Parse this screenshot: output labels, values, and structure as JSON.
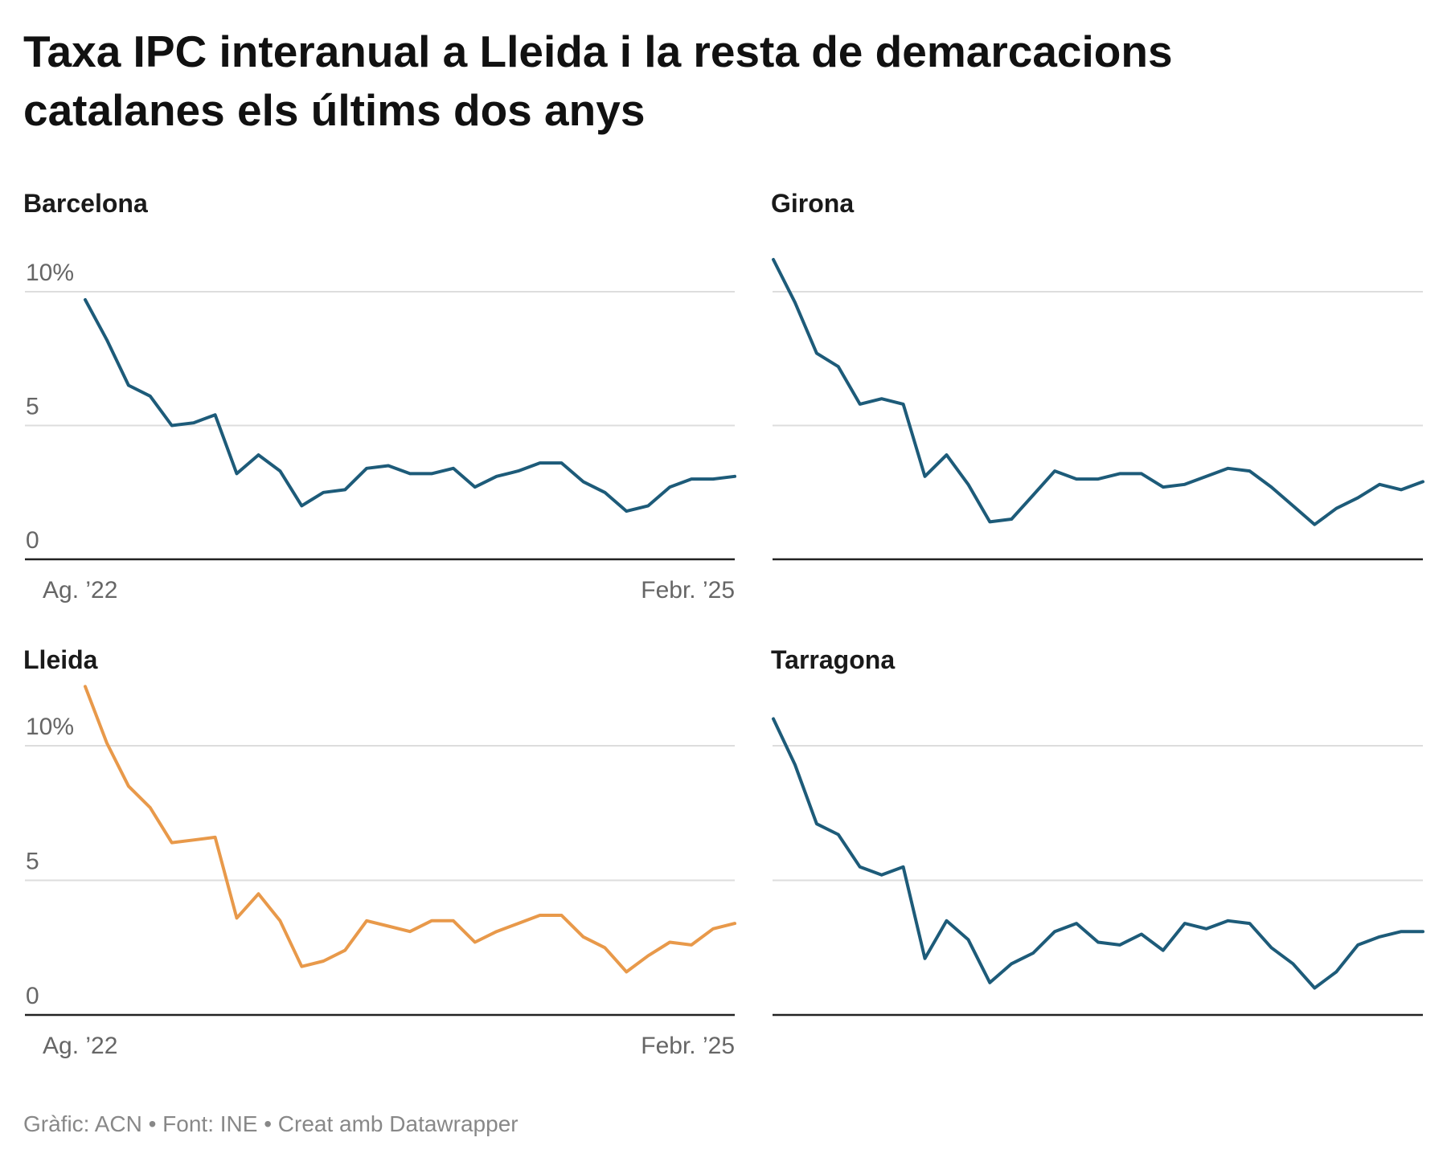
{
  "title": [
    "Taxa IPC interanual a Lleida i la resta de demarcacions",
    "catalanes els últims dos anys"
  ],
  "source": "Gràfic: ACN • Font: INE • Creat amb Datawrapper",
  "chart_data": [
    {
      "type": "line",
      "title": "Barcelona",
      "color": "#1d5b79",
      "categories": [
        "Ag. ’22",
        null,
        null,
        null,
        null,
        null,
        null,
        null,
        null,
        null,
        null,
        null,
        null,
        null,
        null,
        null,
        null,
        null,
        null,
        null,
        null,
        null,
        null,
        null,
        null,
        null,
        null,
        null,
        null,
        null,
        "Febr. ’25"
      ],
      "values": [
        9.7,
        8.2,
        6.5,
        6.1,
        5.0,
        5.1,
        5.4,
        3.2,
        3.9,
        3.3,
        2.0,
        2.5,
        2.6,
        3.4,
        3.5,
        3.2,
        3.2,
        3.4,
        2.7,
        3.1,
        3.3,
        3.6,
        3.6,
        2.9,
        2.5,
        1.8,
        2.0,
        2.7,
        3.0,
        3.0,
        3.1
      ],
      "ylim": [
        0,
        10
      ],
      "yticks": [
        0,
        5,
        {
          "value": 10,
          "label": "10%"
        }
      ],
      "ytick_labels": true,
      "grid": true
    },
    {
      "type": "line",
      "title": "Girona",
      "color": "#1d5b79",
      "categories": [
        null,
        null,
        null,
        null,
        null,
        null,
        null,
        null,
        null,
        null,
        null,
        null,
        null,
        null,
        null,
        null,
        null,
        null,
        null,
        null,
        null,
        null,
        null,
        null,
        null,
        null,
        null,
        null,
        null,
        null,
        null
      ],
      "values": [
        11.2,
        9.6,
        7.7,
        7.2,
        5.8,
        6.0,
        5.8,
        3.1,
        3.9,
        2.8,
        1.4,
        1.5,
        2.4,
        3.3,
        3.0,
        3.0,
        3.2,
        3.2,
        2.7,
        2.8,
        3.1,
        3.4,
        3.3,
        2.7,
        2.0,
        1.3,
        1.9,
        2.3,
        2.8,
        2.6,
        2.9
      ],
      "ylim": [
        0,
        10
      ],
      "yticks": [
        0,
        5,
        10
      ],
      "ytick_labels": false,
      "grid": true
    },
    {
      "type": "line",
      "title": "Lleida",
      "color": "#e8994a",
      "categories": [
        "Ag. ’22",
        null,
        null,
        null,
        null,
        null,
        null,
        null,
        null,
        null,
        null,
        null,
        null,
        null,
        null,
        null,
        null,
        null,
        null,
        null,
        null,
        null,
        null,
        null,
        null,
        null,
        null,
        null,
        null,
        null,
        "Febr. ’25"
      ],
      "values": [
        12.2,
        10.1,
        8.5,
        7.7,
        6.4,
        6.5,
        6.6,
        3.6,
        4.5,
        3.5,
        1.8,
        2.0,
        2.4,
        3.5,
        3.3,
        3.1,
        3.5,
        3.5,
        2.7,
        3.1,
        3.4,
        3.7,
        3.7,
        2.9,
        2.5,
        1.6,
        2.2,
        2.7,
        2.6,
        3.2,
        3.4
      ],
      "ylim": [
        0,
        10
      ],
      "yticks": [
        0,
        5,
        {
          "value": 10,
          "label": "10%"
        }
      ],
      "ytick_labels": true,
      "grid": true
    },
    {
      "type": "line",
      "title": "Tarragona",
      "color": "#1d5b79",
      "categories": [
        null,
        null,
        null,
        null,
        null,
        null,
        null,
        null,
        null,
        null,
        null,
        null,
        null,
        null,
        null,
        null,
        null,
        null,
        null,
        null,
        null,
        null,
        null,
        null,
        null,
        null,
        null,
        null,
        null,
        null,
        null
      ],
      "values": [
        11.0,
        9.3,
        7.1,
        6.7,
        5.5,
        5.2,
        5.5,
        2.1,
        3.5,
        2.8,
        1.2,
        1.9,
        2.3,
        3.1,
        3.4,
        2.7,
        2.6,
        3.0,
        2.4,
        3.4,
        3.2,
        3.5,
        3.4,
        2.5,
        1.9,
        1.0,
        1.6,
        2.6,
        2.9,
        3.1,
        3.1
      ],
      "ylim": [
        0,
        10
      ],
      "yticks": [
        0,
        5,
        10
      ],
      "ytick_labels": false,
      "grid": true
    }
  ]
}
